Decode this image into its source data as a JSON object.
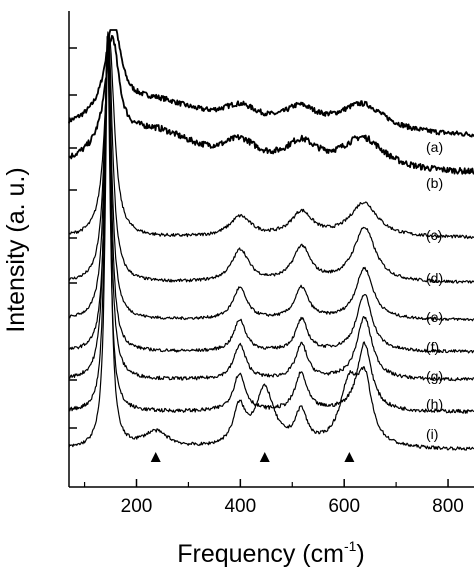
{
  "chart_data": {
    "type": "line",
    "xlabel": "Frequency (cm",
    "xlabel_sup": "-1",
    "xlabel_end": ")",
    "ylabel": "Intensity (a. u.)",
    "xlim": [
      70,
      850
    ],
    "xticks": [
      200,
      400,
      600,
      800
    ],
    "y_axis_ticks": "unlabeled",
    "grid": false,
    "peak_markers_x": [
      237,
      447,
      610
    ],
    "series": [
      {
        "name": "(a)",
        "peaks": [
          {
            "x": 155,
            "h": 0.88,
            "w": 18
          },
          {
            "x": 230,
            "h": 0.34,
            "w": 120
          },
          {
            "x": 400,
            "h": 0.18,
            "w": 45
          },
          {
            "x": 515,
            "h": 0.2,
            "w": 40
          },
          {
            "x": 635,
            "h": 0.28,
            "w": 55
          }
        ],
        "noise": 0.025
      },
      {
        "name": "(b)",
        "peaks": [
          {
            "x": 153,
            "h": 0.78,
            "w": 16
          },
          {
            "x": 230,
            "h": 0.3,
            "w": 110
          },
          {
            "x": 400,
            "h": 0.15,
            "w": 40
          },
          {
            "x": 517,
            "h": 0.17,
            "w": 38
          },
          {
            "x": 636,
            "h": 0.23,
            "w": 50
          }
        ],
        "noise": 0.022
      },
      {
        "name": "(c)",
        "peaks": [
          {
            "x": 148,
            "h": 0.98,
            "w": 11
          },
          {
            "x": 400,
            "h": 0.1,
            "w": 25
          },
          {
            "x": 518,
            "h": 0.12,
            "w": 25
          },
          {
            "x": 638,
            "h": 0.17,
            "w": 32
          }
        ],
        "noise": 0.008
      },
      {
        "name": "(d)",
        "peaks": [
          {
            "x": 146,
            "h": 1.0,
            "w": 9
          },
          {
            "x": 400,
            "h": 0.13,
            "w": 20
          },
          {
            "x": 518,
            "h": 0.14,
            "w": 20
          },
          {
            "x": 639,
            "h": 0.22,
            "w": 25
          }
        ],
        "noise": 0.006
      },
      {
        "name": "(e)",
        "peaks": [
          {
            "x": 145,
            "h": 1.0,
            "w": 8
          },
          {
            "x": 399,
            "h": 0.11,
            "w": 16
          },
          {
            "x": 518,
            "h": 0.11,
            "w": 16
          },
          {
            "x": 639,
            "h": 0.18,
            "w": 20
          }
        ],
        "noise": 0.005
      },
      {
        "name": "(f)",
        "peaks": [
          {
            "x": 145,
            "h": 1.0,
            "w": 7
          },
          {
            "x": 399,
            "h": 0.1,
            "w": 14
          },
          {
            "x": 518,
            "h": 0.1,
            "w": 14
          },
          {
            "x": 639,
            "h": 0.18,
            "w": 18
          }
        ],
        "noise": 0.005
      },
      {
        "name": "(g)",
        "peaks": [
          {
            "x": 144,
            "h": 1.0,
            "w": 7
          },
          {
            "x": 399,
            "h": 0.1,
            "w": 14
          },
          {
            "x": 518,
            "h": 0.1,
            "w": 14
          },
          {
            "x": 639,
            "h": 0.18,
            "w": 18
          }
        ],
        "noise": 0.005
      },
      {
        "name": "(h)",
        "peaks": [
          {
            "x": 144,
            "h": 1.0,
            "w": 6
          },
          {
            "x": 398,
            "h": 0.1,
            "w": 14
          },
          {
            "x": 517,
            "h": 0.1,
            "w": 14
          },
          {
            "x": 639,
            "h": 0.18,
            "w": 17
          }
        ],
        "noise": 0.005
      },
      {
        "name": "(i)",
        "peaks": [
          {
            "x": 145,
            "h": 1.0,
            "w": 6
          },
          {
            "x": 237,
            "h": 0.04,
            "w": 30
          },
          {
            "x": 398,
            "h": 0.09,
            "w": 14
          },
          {
            "x": 447,
            "h": 0.14,
            "w": 22
          },
          {
            "x": 517,
            "h": 0.08,
            "w": 14
          },
          {
            "x": 610,
            "h": 0.15,
            "w": 22
          },
          {
            "x": 640,
            "h": 0.14,
            "w": 16
          }
        ],
        "noise": 0.004
      }
    ]
  }
}
